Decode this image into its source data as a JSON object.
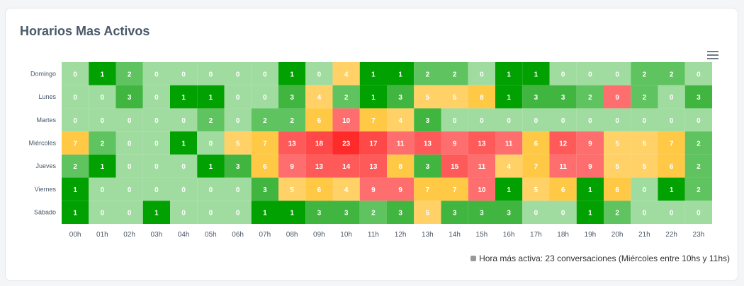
{
  "title": "Horarios Mas Activos",
  "menu_icon": "hamburger-menu-icon",
  "legend_text": "Hora más activa: 23 conversaciones (Miércoles entre 10hs y 11hs)",
  "chart_data": {
    "type": "heatmap",
    "title": "Horarios Mas Activos",
    "x": [
      "00h",
      "01h",
      "02h",
      "03h",
      "04h",
      "05h",
      "06h",
      "07h",
      "08h",
      "09h",
      "10h",
      "11h",
      "12h",
      "13h",
      "14h",
      "15h",
      "16h",
      "17h",
      "18h",
      "19h",
      "20h",
      "21h",
      "22h",
      "23h"
    ],
    "y": [
      "Domingo",
      "Lunes",
      "Martes",
      "Miércoles",
      "Jueves",
      "Viernes",
      "Sábado"
    ],
    "values": [
      [
        0,
        1,
        2,
        0,
        0,
        0,
        0,
        0,
        1,
        0,
        4,
        1,
        1,
        2,
        2,
        0,
        1,
        1,
        0,
        0,
        0,
        2,
        2,
        0
      ],
      [
        0,
        0,
        3,
        0,
        1,
        1,
        0,
        0,
        3,
        4,
        2,
        1,
        3,
        5,
        5,
        8,
        1,
        3,
        3,
        2,
        9,
        2,
        0,
        3
      ],
      [
        0,
        0,
        0,
        0,
        0,
        2,
        0,
        2,
        2,
        6,
        10,
        7,
        4,
        3,
        0,
        0,
        0,
        0,
        0,
        0,
        0,
        0,
        0,
        0
      ],
      [
        7,
        2,
        0,
        0,
        1,
        0,
        5,
        7,
        13,
        18,
        23,
        17,
        11,
        13,
        9,
        13,
        11,
        6,
        12,
        9,
        5,
        5,
        7,
        2
      ],
      [
        2,
        1,
        0,
        0,
        0,
        1,
        3,
        6,
        9,
        13,
        14,
        13,
        8,
        3,
        15,
        11,
        4,
        7,
        11,
        9,
        5,
        5,
        6,
        2
      ],
      [
        1,
        0,
        0,
        0,
        0,
        0,
        0,
        3,
        5,
        6,
        4,
        9,
        9,
        7,
        7,
        10,
        1,
        5,
        6,
        1,
        6,
        0,
        1,
        2
      ],
      [
        1,
        0,
        0,
        1,
        0,
        0,
        0,
        1,
        1,
        3,
        3,
        2,
        3,
        5,
        3,
        3,
        3,
        0,
        0,
        1,
        2,
        0,
        0,
        0
      ]
    ],
    "colors": {
      "zero": "#a0dca0",
      "one": "#00a100",
      "two": "#5fc35f",
      "three": "#40b540",
      "low_yellow": "#ffd166",
      "high_yellow": "#ffc845",
      "low_red": "#ff6e6e",
      "mid_red": "#ff5a5a",
      "high_red": "#ff4848",
      "max_red": "#ff2a2a"
    },
    "legend": "bottom-right"
  }
}
